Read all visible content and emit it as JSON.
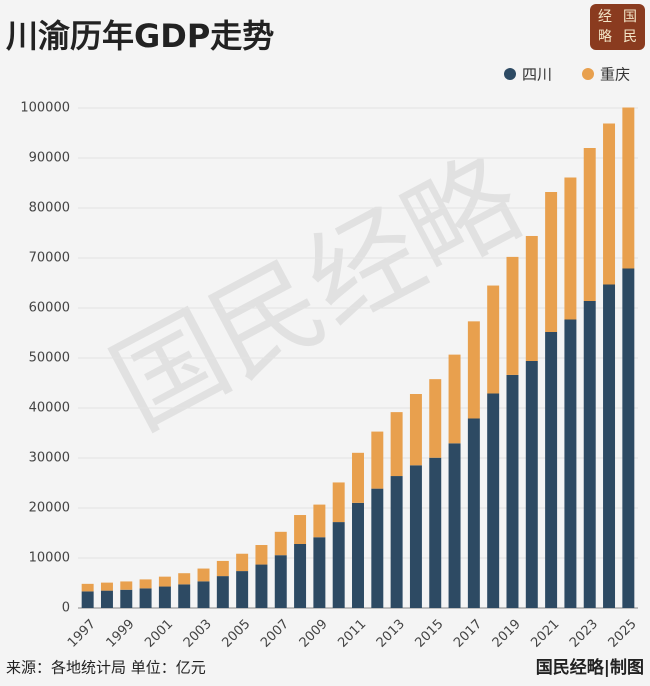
{
  "chart_data": {
    "type": "stacked-bar",
    "title": "川渝历年GDP走势",
    "logo": [
      "经",
      "国",
      "略",
      "民"
    ],
    "watermark": "国民经略",
    "source": "来源：各地统计局 单位：亿元",
    "credit": "国民经略|制图",
    "categories": [
      "1997",
      null,
      "1999",
      null,
      "2001",
      null,
      "2003",
      null,
      "2005",
      null,
      "2007",
      null,
      "2009",
      null,
      "2011",
      null,
      "2013",
      null,
      "2015",
      null,
      "2017",
      null,
      "2019",
      null,
      "2021",
      null,
      "2023",
      null,
      "2025"
    ],
    "series": [
      {
        "name": "四川",
        "color": "#2d4a63",
        "values": [
          3320,
          3474,
          3649,
          3928,
          4293,
          4725,
          5333,
          6380,
          7385,
          8690,
          10562,
          12801,
          14151,
          17185,
          21027,
          23873,
          26392,
          28537,
          30053,
          32935,
          37905,
          42902,
          46616,
          49400,
          55200,
          57700,
          61400,
          64700,
          67900
        ]
      },
      {
        "name": "重庆",
        "color": "#e8a04e",
        "values": [
          1510,
          1603,
          1663,
          1791,
          1977,
          2233,
          2556,
          3035,
          3468,
          3907,
          4676,
          5794,
          6530,
          7926,
          10011,
          11410,
          12783,
          14263,
          15717,
          17741,
          19425,
          21589,
          23605,
          25003,
          28000,
          28400,
          30600,
          32200,
          32200
        ]
      }
    ],
    "ylim": [
      0,
      100000
    ],
    "yticks": [
      0,
      10000,
      20000,
      30000,
      40000,
      50000,
      60000,
      70000,
      80000,
      90000,
      100000
    ]
  }
}
